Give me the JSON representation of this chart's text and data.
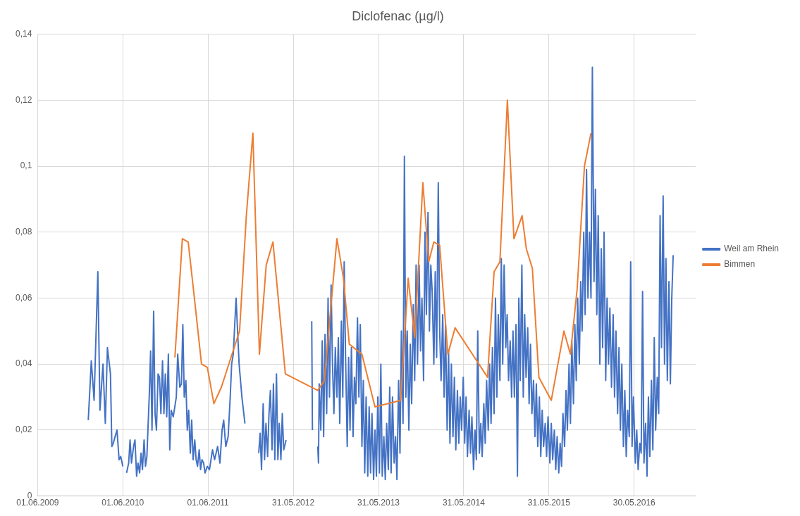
{
  "chart_data": {
    "type": "line",
    "title": "Diclofenac (µg/l)",
    "xlim": [
      "2009-06-01",
      "2017-02-18"
    ],
    "xticks": [
      {
        "value": "2009-06-01",
        "label": "01.06.2009"
      },
      {
        "value": "2010-06-01",
        "label": "01.06.2010"
      },
      {
        "value": "2011-06-01",
        "label": "01.06.2011"
      },
      {
        "value": "2012-05-31",
        "label": "31.05.2012"
      },
      {
        "value": "2013-05-31",
        "label": "31.05.2013"
      },
      {
        "value": "2014-05-31",
        "label": "31.05.2014"
      },
      {
        "value": "2015-05-31",
        "label": "31.05.2015"
      },
      {
        "value": "2016-05-30",
        "label": "30.05.2016"
      }
    ],
    "ylim": [
      0,
      0.14
    ],
    "yticks": [
      0,
      {
        "value": 0.02,
        "label": "0,02"
      },
      {
        "value": 0.04,
        "label": "0,04"
      },
      {
        "value": 0.06,
        "label": "0,06"
      },
      {
        "value": 0.08,
        "label": "0,08"
      },
      {
        "value": 0.1,
        "label": "0,1"
      },
      {
        "value": 0.12,
        "label": "0,12"
      },
      {
        "value": 0.14,
        "label": "0,14"
      }
    ],
    "grid": true,
    "legend": "right",
    "marker": "none",
    "line_style": "solid",
    "series": [
      {
        "name": "Weil am Rhein",
        "color": "#4472c4",
        "x": [
          "2010-01-04",
          "2010-01-17",
          "2010-01-29",
          "2010-02-14",
          "2010-02-23",
          "2010-03-08",
          "2010-03-18",
          "2010-03-27",
          "2010-04-09",
          "2010-04-15",
          "2010-04-21",
          "2010-05-07",
          "2010-05-16",
          "2010-05-23",
          "2010-06-01",
          "2010-06-09",
          "2010-06-17",
          "2010-06-26",
          "2010-07-02",
          "2010-07-08",
          "2010-07-17",
          "2010-07-23",
          "2010-07-30",
          "2010-08-05",
          "2010-08-12",
          "2010-08-18",
          "2010-08-24",
          "2010-08-31",
          "2010-09-06",
          "2010-09-12",
          "2010-09-22",
          "2010-09-28",
          "2010-10-04",
          "2010-10-11",
          "2010-10-17",
          "2010-10-23",
          "2010-10-30",
          "2010-11-05",
          "2010-11-11",
          "2010-11-18",
          "2010-11-24",
          "2010-11-30",
          "2010-12-06",
          "2010-12-13",
          "2010-12-19",
          "2010-12-25",
          "2011-01-03",
          "2011-01-16",
          "2011-01-22",
          "2011-01-31",
          "2011-02-07",
          "2011-02-13",
          "2011-02-19",
          "2011-02-26",
          "2011-03-04",
          "2011-03-10",
          "2011-03-17",
          "2011-03-23",
          "2011-03-29",
          "2011-04-05",
          "2011-04-11",
          "2011-04-17",
          "2011-04-24",
          "2011-04-30",
          "2011-05-06",
          "2011-05-13",
          "2011-05-19",
          "2011-05-29",
          "2011-06-07",
          "2011-06-20",
          "2011-06-29",
          "2011-07-12",
          "2011-07-22",
          "2011-07-31",
          "2011-08-07",
          "2011-08-16",
          "2011-08-26",
          "2011-09-04",
          "2011-09-10",
          "2011-09-17",
          "2011-09-29",
          "2011-10-12",
          "2011-10-24",
          "2011-11-06",
          "2011-12-01",
          "2012-01-04",
          "2012-01-10",
          "2012-01-16",
          "2012-01-23",
          "2012-01-29",
          "2012-02-04",
          "2012-02-11",
          "2012-02-17",
          "2012-02-23",
          "2012-03-01",
          "2012-03-07",
          "2012-03-13",
          "2012-03-20",
          "2012-03-26",
          "2012-04-01",
          "2012-04-08",
          "2012-04-14",
          "2012-04-20",
          "2012-04-27",
          "2012-04-30",
          "2012-07-01",
          "2012-08-18",
          "2012-08-21",
          "2012-09-01",
          "2012-09-13",
          "2012-09-16",
          "2012-09-19",
          "2012-09-26",
          "2012-10-02",
          "2012-10-08",
          "2012-10-14",
          "2012-10-21",
          "2012-10-27",
          "2012-11-02",
          "2012-11-09",
          "2012-11-15",
          "2012-11-21",
          "2012-11-27",
          "2012-12-04",
          "2012-12-10",
          "2012-12-16",
          "2012-12-23",
          "2012-12-29",
          "2013-01-04",
          "2013-01-10",
          "2013-01-17",
          "2013-01-23",
          "2013-01-29",
          "2013-02-04",
          "2013-02-11",
          "2013-02-17",
          "2013-02-23",
          "2013-03-02",
          "2013-03-08",
          "2013-03-14",
          "2013-03-21",
          "2013-03-27",
          "2013-04-02",
          "2013-04-08",
          "2013-04-15",
          "2013-04-21",
          "2013-04-27",
          "2013-05-03",
          "2013-05-10",
          "2013-05-16",
          "2013-05-22",
          "2013-05-28",
          "2013-06-04",
          "2013-06-10",
          "2013-06-16",
          "2013-06-23",
          "2013-06-29",
          "2013-07-05",
          "2013-07-12",
          "2013-07-18",
          "2013-07-24",
          "2013-07-30",
          "2013-08-06",
          "2013-08-12",
          "2013-08-18",
          "2013-08-25",
          "2013-08-31",
          "2013-09-06",
          "2013-09-13",
          "2013-09-19",
          "2013-09-25",
          "2013-10-01",
          "2013-10-08",
          "2013-10-14",
          "2013-10-20",
          "2013-10-27",
          "2013-11-02",
          "2013-11-08",
          "2013-11-14",
          "2013-11-21",
          "2013-11-27",
          "2013-12-03",
          "2013-12-10",
          "2013-12-16",
          "2013-12-22",
          "2013-12-29",
          "2014-01-04",
          "2014-01-10",
          "2014-01-16",
          "2014-01-23",
          "2014-01-29",
          "2014-02-04",
          "2014-02-11",
          "2014-02-17",
          "2014-02-23",
          "2014-03-02",
          "2014-03-08",
          "2014-03-14",
          "2014-03-21",
          "2014-03-27",
          "2014-04-02",
          "2014-04-08",
          "2014-04-15",
          "2014-04-21",
          "2014-04-27",
          "2014-05-04",
          "2014-05-10",
          "2014-05-16",
          "2014-05-22",
          "2014-05-29",
          "2014-06-04",
          "2014-06-10",
          "2014-06-16",
          "2014-06-23",
          "2014-06-29",
          "2014-07-05",
          "2014-07-12",
          "2014-07-18",
          "2014-07-24",
          "2014-07-30",
          "2014-08-06",
          "2014-08-12",
          "2014-08-18",
          "2014-08-25",
          "2014-08-31",
          "2014-09-06",
          "2014-09-13",
          "2014-09-19",
          "2014-09-25",
          "2014-10-01",
          "2014-10-08",
          "2014-10-14",
          "2014-10-20",
          "2014-10-26",
          "2014-11-02",
          "2014-11-08",
          "2014-11-14",
          "2014-11-20",
          "2014-11-27",
          "2014-12-03",
          "2014-12-09",
          "2014-12-16",
          "2014-12-22",
          "2014-12-28",
          "2015-01-03",
          "2015-01-10",
          "2015-01-16",
          "2015-01-22",
          "2015-01-28",
          "2015-02-04",
          "2015-02-10",
          "2015-02-16",
          "2015-02-22",
          "2015-03-01",
          "2015-03-07",
          "2015-03-13",
          "2015-03-19",
          "2015-03-26",
          "2015-04-01",
          "2015-04-07",
          "2015-04-13",
          "2015-04-20",
          "2015-04-26",
          "2015-05-02",
          "2015-05-08",
          "2015-05-15",
          "2015-05-21",
          "2015-05-27",
          "2015-06-04",
          "2015-06-10",
          "2015-06-16",
          "2015-06-23",
          "2015-06-29",
          "2015-07-05",
          "2015-07-12",
          "2015-07-18",
          "2015-07-24",
          "2015-07-30",
          "2015-08-06",
          "2015-08-12",
          "2015-08-18",
          "2015-08-25",
          "2015-08-31",
          "2015-09-06",
          "2015-09-13",
          "2015-09-19",
          "2015-09-25",
          "2015-10-01",
          "2015-10-08",
          "2015-10-14",
          "2015-10-20",
          "2015-10-27",
          "2015-11-02",
          "2015-11-08",
          "2015-11-14",
          "2015-11-21",
          "2015-11-27",
          "2015-12-03",
          "2015-12-10",
          "2015-12-16",
          "2015-12-22",
          "2015-12-28",
          "2016-01-04",
          "2016-01-10",
          "2016-01-16",
          "2016-01-22",
          "2016-01-29",
          "2016-02-04",
          "2016-02-10",
          "2016-02-16",
          "2016-02-23",
          "2016-03-01",
          "2016-03-07",
          "2016-03-13",
          "2016-03-20",
          "2016-03-26",
          "2016-04-01",
          "2016-04-07",
          "2016-04-14",
          "2016-04-20",
          "2016-04-26",
          "2016-05-02",
          "2016-05-09",
          "2016-05-15",
          "2016-05-21",
          "2016-05-27",
          "2016-06-04",
          "2016-06-10",
          "2016-06-16",
          "2016-06-23",
          "2016-06-29",
          "2016-07-05",
          "2016-07-11",
          "2016-07-18",
          "2016-07-24",
          "2016-07-30",
          "2016-08-05",
          "2016-08-12",
          "2016-08-18",
          "2016-08-24",
          "2016-08-30",
          "2016-09-06",
          "2016-09-12",
          "2016-09-18",
          "2016-09-24",
          "2016-10-01",
          "2016-10-07",
          "2016-10-13",
          "2016-10-19",
          "2016-10-26",
          "2016-11-01",
          "2016-11-07",
          "2016-11-13"
        ],
        "values": [
          0.023,
          0.041,
          0.029,
          0.068,
          0.026,
          0.04,
          0.022,
          0.045,
          0.037,
          0.015,
          0.016,
          0.02,
          0.011,
          0.012,
          0.009,
          null,
          0.007,
          0.01,
          0.017,
          0.01,
          0.015,
          0.017,
          0.006,
          0.01,
          0.007,
          0.013,
          0.008,
          0.017,
          0.009,
          0.012,
          0.03,
          0.044,
          0.02,
          0.056,
          0.025,
          0.02,
          0.037,
          0.036,
          0.025,
          0.041,
          0.025,
          0.037,
          0.024,
          0.043,
          0.014,
          0.026,
          0.024,
          0.03,
          0.043,
          0.033,
          0.034,
          0.052,
          0.03,
          0.035,
          0.02,
          0.026,
          0.013,
          0.023,
          0.011,
          0.017,
          0.011,
          0.009,
          0.014,
          0.008,
          0.011,
          0.01,
          0.007,
          0.009,
          0.008,
          0.014,
          0.011,
          0.015,
          0.01,
          0.02,
          0.023,
          0.015,
          0.018,
          0.03,
          0.04,
          0.043,
          0.06,
          0.04,
          0.03,
          0.022,
          null,
          0.013,
          0.019,
          0.008,
          0.028,
          0.011,
          0.022,
          0.012,
          0.025,
          0.032,
          0.014,
          0.034,
          0.011,
          0.037,
          0.011,
          0.022,
          0.011,
          0.025,
          0.014,
          0.016,
          0.017,
          null,
          0.053,
          0.02,
          null,
          0.015,
          0.01,
          0.034,
          0.02,
          0.047,
          0.018,
          0.049,
          0.025,
          0.06,
          0.03,
          0.064,
          0.04,
          0.025,
          0.045,
          0.03,
          0.048,
          0.022,
          0.053,
          0.03,
          0.071,
          0.042,
          0.015,
          0.042,
          0.02,
          0.045,
          0.018,
          0.036,
          0.028,
          0.054,
          0.03,
          0.052,
          0.015,
          0.035,
          0.007,
          0.03,
          0.006,
          0.027,
          0.007,
          0.025,
          0.005,
          0.02,
          0.006,
          0.03,
          0.007,
          0.04,
          0.006,
          0.018,
          0.005,
          0.022,
          0.008,
          0.033,
          0.007,
          0.03,
          0.01,
          0.018,
          0.005,
          0.035,
          0.013,
          0.05,
          0.022,
          0.103,
          0.03,
          0.05,
          0.02,
          0.046,
          0.028,
          0.058,
          0.035,
          0.07,
          0.04,
          0.07,
          0.044,
          0.06,
          0.035,
          0.08,
          0.055,
          0.086,
          0.05,
          0.07,
          0.062,
          0.04,
          0.068,
          0.042,
          0.095,
          0.05,
          0.035,
          0.055,
          0.03,
          0.052,
          0.02,
          0.044,
          0.016,
          0.04,
          0.018,
          0.036,
          0.014,
          0.032,
          0.016,
          0.03,
          0.02,
          0.036,
          0.016,
          0.03,
          0.012,
          0.026,
          0.013,
          0.024,
          0.008,
          0.02,
          0.011,
          0.05,
          0.013,
          0.022,
          0.012,
          0.028,
          0.016,
          0.035,
          0.02,
          0.04,
          0.022,
          0.045,
          0.025,
          0.06,
          0.03,
          0.055,
          0.035,
          0.072,
          0.04,
          0.07,
          0.045,
          0.055,
          0.035,
          0.047,
          0.03,
          0.05,
          0.03,
          0.052,
          0.006,
          0.06,
          0.035,
          0.07,
          0.03,
          0.055,
          0.036,
          0.051,
          0.028,
          0.046,
          0.025,
          0.035,
          0.018,
          0.034,
          0.015,
          0.03,
          0.012,
          0.026,
          0.015,
          0.022,
          0.012,
          0.024,
          0.01,
          0.022,
          0.011,
          0.02,
          0.008,
          0.018,
          0.007,
          0.016,
          0.009,
          0.025,
          0.015,
          0.032,
          0.02,
          0.04,
          0.022,
          0.047,
          0.028,
          0.052,
          0.035,
          0.06,
          0.04,
          0.065,
          0.05,
          0.08,
          0.055,
          0.099,
          0.06,
          0.08,
          0.06,
          0.13,
          0.065,
          0.093,
          0.055,
          0.085,
          0.04,
          0.075,
          0.045,
          0.08,
          0.035,
          0.06,
          0.04,
          0.057,
          0.033,
          0.055,
          0.03,
          0.05,
          0.025,
          0.045,
          0.02,
          0.04,
          0.015,
          0.032,
          0.012,
          0.026,
          0.018,
          0.071,
          0.015,
          0.03,
          0.01,
          0.02,
          0.008,
          0.016,
          0.013,
          0.062,
          0.01,
          0.022,
          0.006,
          0.03,
          0.012,
          0.035,
          0.014,
          0.048,
          0.02,
          0.036,
          0.025,
          0.085,
          0.045,
          0.091,
          0.04,
          0.072,
          0.035,
          0.065,
          0.034,
          0.06,
          0.073
        ]
      },
      {
        "name": "Bimmen",
        "color": "#ed7d31",
        "x": [
          "2011-01-10",
          "2011-02-11",
          "2011-03-08",
          "2011-04-02",
          "2011-05-04",
          "2011-05-29",
          "2011-06-26",
          "2011-07-28",
          "2011-10-14",
          "2011-11-12",
          "2011-12-10",
          "2012-01-07",
          "2012-02-05",
          "2012-03-05",
          "2012-04-27",
          "2012-09-13",
          "2012-10-11",
          "2012-12-04",
          "2013-01-01",
          "2013-01-26",
          "2013-03-21",
          "2013-05-16",
          "2013-09-03",
          "2013-10-05",
          "2013-11-02",
          "2013-12-07",
          "2014-01-01",
          "2014-01-23",
          "2014-02-17",
          "2014-03-24",
          "2014-04-24",
          "2014-09-10",
          "2014-10-08",
          "2014-11-02",
          "2014-12-04",
          "2015-01-01",
          "2015-02-05",
          "2015-02-23",
          "2015-03-21",
          "2015-04-18",
          "2015-06-10",
          "2015-08-03",
          "2015-08-31",
          "2015-09-29",
          "2015-10-30",
          "2015-11-27"
        ],
        "values": [
          0.042,
          0.078,
          0.077,
          0.061,
          0.04,
          0.039,
          0.028,
          0.033,
          0.05,
          0.085,
          0.11,
          0.043,
          0.07,
          0.077,
          0.037,
          0.032,
          0.035,
          0.078,
          0.066,
          0.046,
          0.043,
          0.027,
          0.029,
          0.066,
          0.048,
          0.095,
          0.071,
          0.077,
          0.076,
          0.043,
          0.051,
          0.036,
          0.068,
          0.071,
          0.12,
          0.078,
          0.085,
          0.075,
          0.069,
          0.036,
          0.029,
          0.05,
          0.043,
          0.063,
          0.1,
          0.11
        ]
      }
    ]
  }
}
